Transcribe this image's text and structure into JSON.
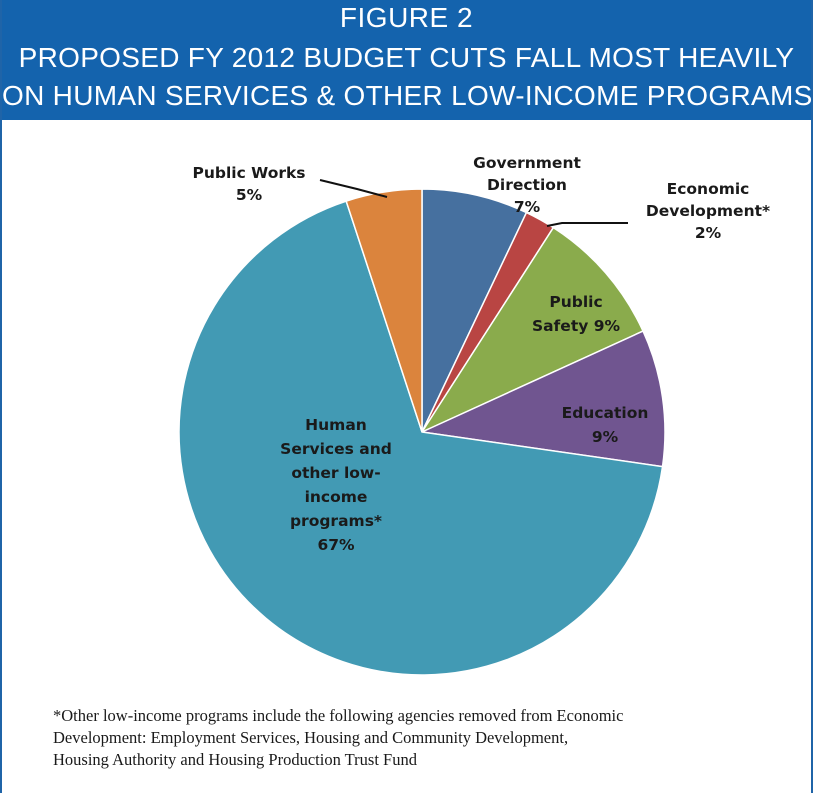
{
  "header": {
    "figure_label": "FIGURE 2",
    "title_line1": "PROPOSED FY 2012 BUDGET CUTS FALL MOST HEAVILY",
    "title_line2": "ON HUMAN SERVICES & OTHER LOW-INCOME PROGRAMS"
  },
  "colors": {
    "header_bg": "#1463ad",
    "border": "#1f64a8"
  },
  "chart_data": {
    "type": "pie",
    "title": "PROPOSED FY 2012 BUDGET CUTS FALL MOST HEAVILY ON HUMAN SERVICES & OTHER LOW-INCOME PROGRAMS",
    "slices": [
      {
        "name": "Government Direction",
        "value": 7,
        "label_lines": [
          "Government",
          "Direction",
          "7%"
        ],
        "color": "#46709f"
      },
      {
        "name": "Economic Development*",
        "value": 2,
        "label_lines": [
          "Economic",
          "Development*",
          "2%"
        ],
        "color": "#b94543"
      },
      {
        "name": "Public Safety",
        "value": 9,
        "label_lines": [
          "Public",
          "Safety 9%"
        ],
        "color": "#8aab4c"
      },
      {
        "name": "Education",
        "value": 9,
        "label_lines": [
          "Education",
          "9%"
        ],
        "color": "#705590"
      },
      {
        "name": "Human Services and other low-income programs*",
        "value": 67,
        "label_lines": [
          "Human",
          "Services and",
          "other low-",
          "income",
          "programs*",
          "67%"
        ],
        "color": "#429ab4"
      },
      {
        "name": "Public Works",
        "value": 5,
        "label_lines": [
          "Public Works",
          "5%"
        ],
        "color": "#db843d"
      }
    ],
    "start": "12 o'clock",
    "direction": "clockwise",
    "legend": "none"
  },
  "footnote": {
    "line1": "*Other low-income programs include the following agencies removed from Economic",
    "line2": "Development:  Employment Services, Housing and Community Development,",
    "line3": "Housing Authority and Housing Production Trust  Fund"
  }
}
